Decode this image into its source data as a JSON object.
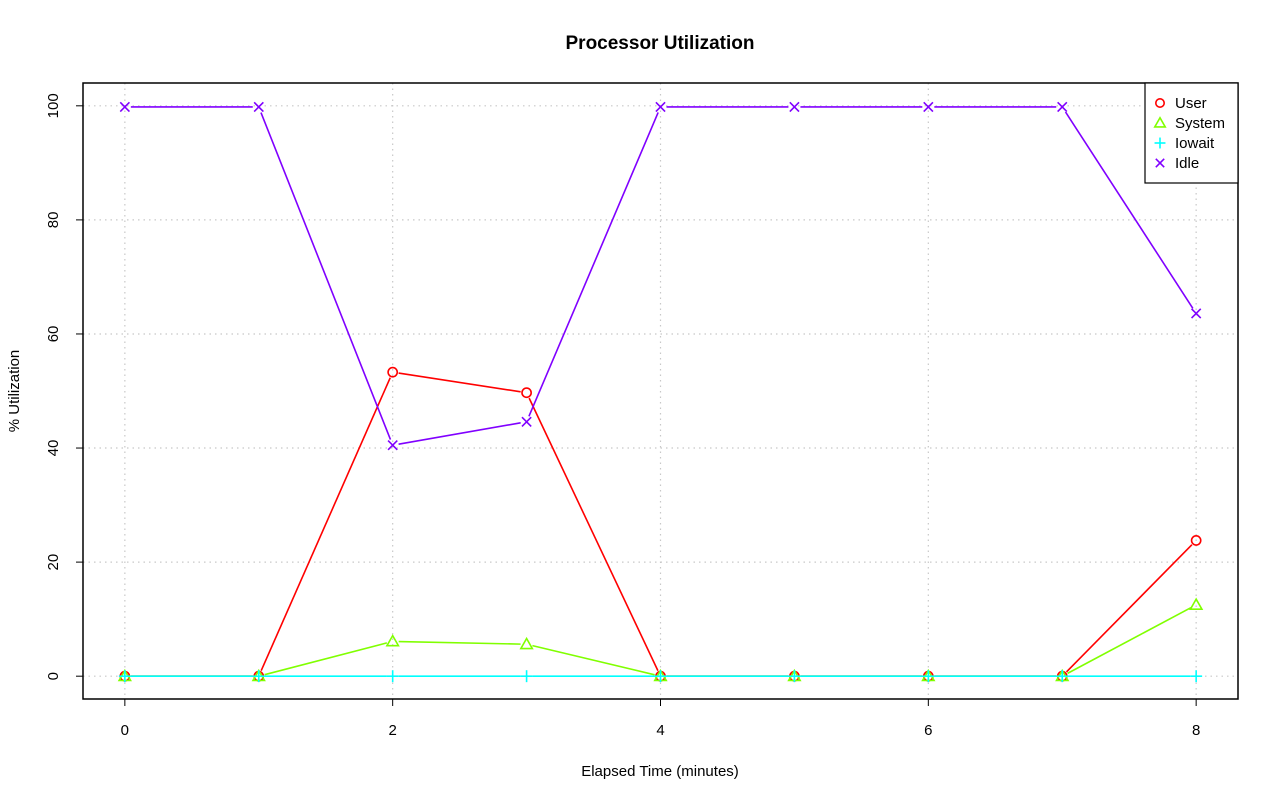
{
  "chart_data": {
    "type": "line",
    "title": "Processor Utilization",
    "xlabel": "Elapsed Time (minutes)",
    "ylabel": "% Utilization",
    "x": [
      0,
      1,
      2,
      3,
      4,
      5,
      6,
      7,
      8
    ],
    "xlim": [
      -0.3125,
      8.3125
    ],
    "ylim": [
      -4,
      104
    ],
    "x_ticks": [
      "0",
      "2",
      "4",
      "6",
      "8"
    ],
    "y_ticks": [
      "0",
      "20",
      "40",
      "60",
      "80",
      "100"
    ],
    "grid": true,
    "legend_position": "top-right",
    "series": [
      {
        "name": "User",
        "marker": "circle",
        "color": "#FF0000",
        "values": [
          0,
          0,
          53.3,
          49.7,
          0,
          0,
          0,
          0,
          23.8
        ]
      },
      {
        "name": "System",
        "marker": "triangle",
        "color": "#80FF00",
        "values": [
          0,
          0,
          6.1,
          5.6,
          0,
          0,
          0,
          0,
          12.5
        ]
      },
      {
        "name": "Iowait",
        "marker": "plus",
        "color": "#00FFFF",
        "values": [
          0,
          0,
          0,
          0,
          0,
          0,
          0,
          0,
          0
        ]
      },
      {
        "name": "Idle",
        "marker": "cross",
        "color": "#8000FF",
        "values": [
          99.8,
          99.8,
          40.5,
          44.6,
          99.8,
          99.8,
          99.8,
          99.8,
          63.6
        ]
      }
    ]
  }
}
